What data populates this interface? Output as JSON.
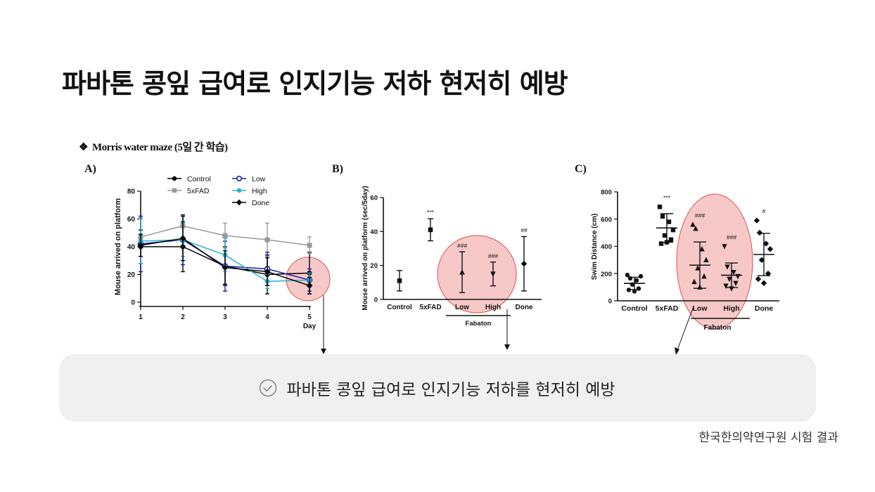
{
  "page": {
    "title": "파바톤 콩잎 급여로 인지기능 저하 현저히 예방",
    "subtitle": "Morris water maze (5일 간 학습)",
    "subtitle_bullet": "❖",
    "conclusion": "파바톤 콩잎 급여로 인지기능 저하를 현저히 예방",
    "source": "한국한의약연구원 시험 결과",
    "highlight_color": "#f4b6b6",
    "highlight_stroke": "#d9534f"
  },
  "chart_data": [
    {
      "panel": "A)",
      "type": "line",
      "ylabel": "Mouse arrived on platform",
      "xlabel": "Day",
      "x": [
        1,
        2,
        3,
        4,
        5
      ],
      "ylim": [
        0,
        80
      ],
      "yticks": [
        0,
        20,
        40,
        60,
        80
      ],
      "series": [
        {
          "name": "Control",
          "color": "#000000",
          "marker": "circle",
          "values": [
            40,
            40,
            26,
            20,
            21
          ],
          "err": [
            12,
            18,
            14,
            14,
            15
          ]
        },
        {
          "name": "5xFAD",
          "color": "#999999",
          "marker": "square",
          "values": [
            47,
            55,
            48,
            45,
            41
          ],
          "err": [
            14,
            8,
            9,
            12,
            6
          ]
        },
        {
          "name": "Low",
          "color": "#1a1aa6",
          "marker": "circle-open",
          "values": [
            42,
            45,
            26,
            24,
            16
          ],
          "err": [
            20,
            18,
            18,
            12,
            8
          ]
        },
        {
          "name": "High",
          "color": "#2ab0c8",
          "marker": "circle",
          "values": [
            44,
            45,
            34,
            15,
            16
          ],
          "err": [
            16,
            12,
            12,
            5,
            5
          ]
        },
        {
          "name": "Done",
          "color": "#000000",
          "marker": "diamond",
          "values": [
            41,
            46,
            25,
            22,
            12
          ],
          "err": [
            8,
            16,
            12,
            10,
            6
          ]
        }
      ]
    },
    {
      "panel": "B)",
      "type": "scatter",
      "ylabel": "Mouse arrived on platform (sec/5day)",
      "categories": [
        "Control",
        "5xFAD",
        "Low",
        "High",
        "Done"
      ],
      "group_label": "Fabaton",
      "ylim": [
        0,
        60
      ],
      "yticks": [
        0,
        20,
        40,
        60
      ],
      "values": [
        11,
        41,
        16,
        15,
        21
      ],
      "err": [
        6,
        6.5,
        12,
        7,
        16
      ],
      "significance": [
        "",
        "***",
        "###",
        "###",
        "##"
      ]
    },
    {
      "panel": "C)",
      "type": "scatter",
      "ylabel": "Swim Distance (cm)",
      "categories": [
        "Control",
        "5xFAD",
        "Low",
        "High",
        "Done"
      ],
      "group_label": "Fabaton",
      "ylim": [
        0,
        800
      ],
      "yticks": [
        0,
        200,
        400,
        600,
        800
      ],
      "means": [
        128,
        535,
        262,
        188,
        340
      ],
      "err": [
        45,
        105,
        170,
        90,
        155
      ],
      "points": [
        [
          190,
          165,
          150,
          180,
          120,
          90,
          80,
          70
        ],
        [
          690,
          620,
          580,
          520,
          480,
          450,
          420,
          430
        ],
        [
          560,
          530,
          380,
          300,
          240,
          180,
          140,
          100
        ],
        [
          400,
          250,
          210,
          180,
          160,
          130,
          110,
          90
        ],
        [
          590,
          500,
          420,
          380,
          300,
          200,
          160,
          130
        ]
      ],
      "significance": [
        "",
        "***",
        "###",
        "###",
        "#"
      ]
    }
  ]
}
